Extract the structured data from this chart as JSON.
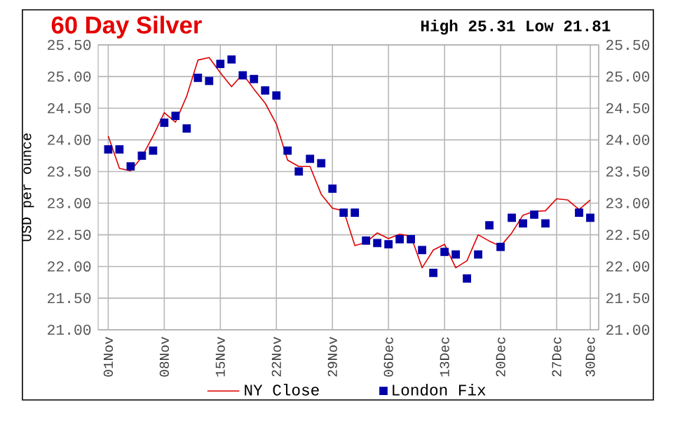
{
  "chart_data": {
    "type": "line",
    "title": "60 Day Silver",
    "ylabel": "USD per ounce",
    "annotations": [
      "High 25.31 Low 21.81"
    ],
    "categories": [
      "01Nov",
      null,
      null,
      null,
      null,
      "08Nov",
      null,
      null,
      null,
      null,
      "15Nov",
      null,
      null,
      null,
      null,
      "22Nov",
      null,
      null,
      null,
      null,
      "29Nov",
      null,
      null,
      null,
      null,
      "06Dec",
      null,
      null,
      null,
      null,
      "13Dec",
      null,
      null,
      null,
      null,
      "20Dec",
      null,
      null,
      null,
      null,
      "27Dec",
      null,
      null,
      "30Dec"
    ],
    "ylim": [
      21,
      25.5
    ],
    "yticks": [
      {
        "value": 21,
        "label": "21.00"
      },
      {
        "value": 21.5,
        "label": "21.50"
      },
      {
        "value": 22,
        "label": "22.00"
      },
      {
        "value": 22.5,
        "label": "22.50"
      },
      {
        "value": 23,
        "label": "23.00"
      },
      {
        "value": 23.5,
        "label": "23.50"
      },
      {
        "value": 24,
        "label": "24.00"
      },
      {
        "value": 24.5,
        "label": "24.50"
      },
      {
        "value": 25,
        "label": "25.00"
      },
      {
        "value": 25.5,
        "label": "25.50"
      }
    ],
    "y2lim": [
      21,
      25.5
    ],
    "y2ticks": [
      {
        "value": 21,
        "label": "21.00"
      },
      {
        "value": 21.5,
        "label": "21.50"
      },
      {
        "value": 22,
        "label": "22.00"
      },
      {
        "value": 22.5,
        "label": "22.50"
      },
      {
        "value": 23,
        "label": "23.00"
      },
      {
        "value": 23.5,
        "label": "23.50"
      },
      {
        "value": 24,
        "label": "24.00"
      },
      {
        "value": 24.5,
        "label": "24.50"
      },
      {
        "value": 25,
        "label": "25.00"
      },
      {
        "value": 25.5,
        "label": "25.50"
      }
    ],
    "grid": true,
    "legend": "bottom",
    "series": [
      {
        "name": "NY Close",
        "type": "line",
        "color": "#dd0000",
        "marker": "none",
        "values": [
          24.06,
          23.55,
          23.51,
          23.73,
          24.06,
          24.43,
          24.28,
          24.69,
          25.26,
          25.3,
          25.06,
          24.84,
          25.04,
          24.8,
          24.58,
          24.25,
          23.68,
          23.58,
          23.58,
          23.14,
          22.92,
          22.88,
          22.33,
          22.38,
          22.53,
          22.44,
          22.51,
          22.48,
          21.98,
          22.26,
          22.35,
          21.98,
          22.09,
          22.5,
          22.4,
          22.32,
          22.53,
          22.81,
          22.87,
          22.88,
          23.07,
          23.05,
          22.9,
          23.05
        ]
      },
      {
        "name": "London Fix",
        "type": "scatter",
        "color": "#0000aa",
        "marker": "square",
        "values": [
          23.85,
          23.85,
          23.58,
          23.75,
          23.83,
          24.27,
          24.38,
          24.18,
          24.98,
          24.93,
          25.2,
          25.27,
          25.02,
          24.96,
          24.78,
          24.7,
          23.83,
          23.5,
          23.7,
          23.63,
          23.23,
          22.85,
          22.85,
          22.41,
          22.37,
          22.35,
          22.43,
          22.43,
          22.26,
          21.9,
          22.23,
          22.19,
          21.81,
          22.19,
          22.65,
          22.31,
          22.77,
          22.68,
          22.82,
          22.68,
          null,
          null,
          22.85,
          22.77
        ]
      }
    ]
  }
}
